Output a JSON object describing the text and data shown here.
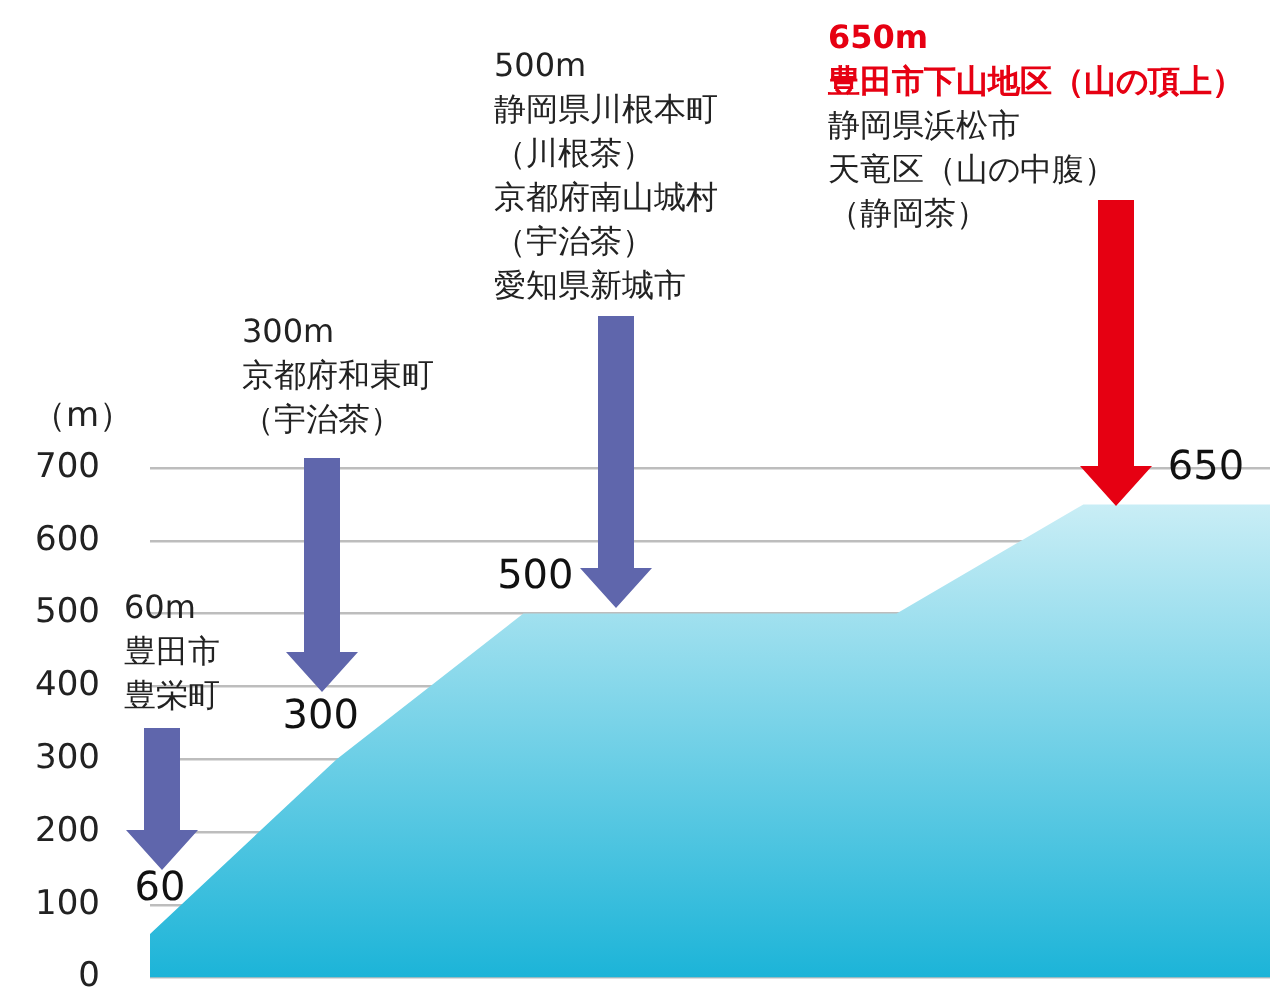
{
  "chart_data": {
    "type": "area",
    "ylabel": "（m）",
    "categories": [
      null,
      null,
      null,
      null,
      null,
      null,
      null
    ],
    "series": [
      {
        "color": "#1cb4d8",
        "values": [
          60,
          300,
          500,
          500,
          500,
          650,
          650
        ],
        "value_labels": [
          "60",
          "300",
          "500",
          null,
          null,
          null,
          "650"
        ]
      }
    ],
    "ylim": [
      0,
      700
    ],
    "yticks": [
      0,
      100,
      200,
      300,
      400,
      500,
      600,
      700
    ],
    "grid": "y",
    "legend": false,
    "annotations": [
      "60m\n豊田市豊栄町",
      "300m\n京都府和東町（宇治茶）",
      "500m\n静岡県川根本町（川根茶）京都府南山城村（宇治茶）愛知県新城市",
      "650m\n豊田市下山地区（山の頂上）",
      "静岡県浜松市天竜区（山の中腹）（静岡茶）"
    ]
  }
}
